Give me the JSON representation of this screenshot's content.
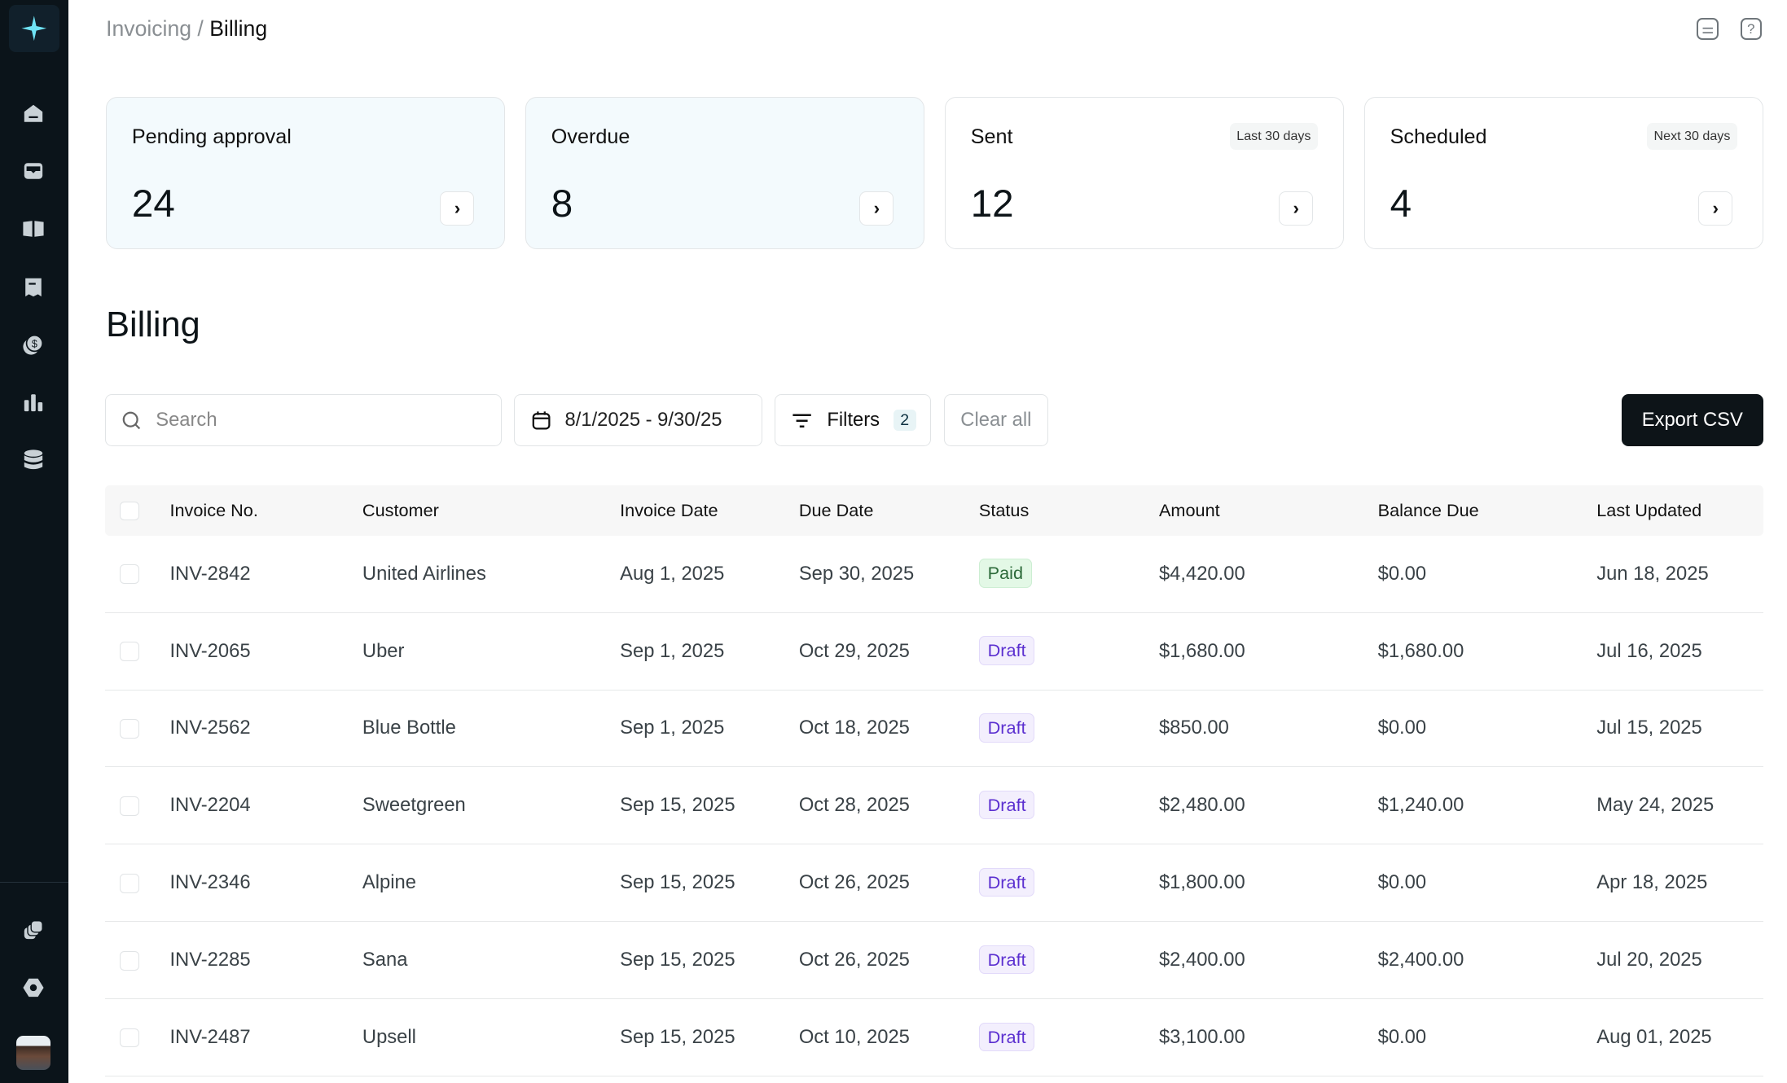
{
  "sidebar": {
    "items": [
      {
        "icon": "home-icon"
      },
      {
        "icon": "inbox-icon"
      },
      {
        "icon": "book-icon"
      },
      {
        "icon": "receipt-icon"
      },
      {
        "icon": "coins-icon"
      },
      {
        "icon": "chart-icon"
      },
      {
        "icon": "database-icon"
      },
      {
        "icon": "layers-icon"
      },
      {
        "icon": "settings-icon"
      }
    ],
    "logo_color": "#6fe3f5"
  },
  "breadcrumb": {
    "parent": "Invoicing",
    "separator": "/",
    "current": "Billing"
  },
  "cards": [
    {
      "label": "Pending approval",
      "value": "24",
      "pill": ""
    },
    {
      "label": "Overdue",
      "value": "8",
      "pill": ""
    },
    {
      "label": "Sent",
      "value": "12",
      "pill": "Last 30 days"
    },
    {
      "label": "Scheduled",
      "value": "4",
      "pill": "Next 30 days"
    }
  ],
  "title": "Billing",
  "toolbar": {
    "search_placeholder": "Search",
    "date_range": "8/1/2025 - 9/30/25",
    "filters_label": "Filters",
    "filters_count": "2",
    "clear_label": "Clear all",
    "export_label": "Export CSV"
  },
  "table": {
    "headers": [
      "Invoice No.",
      "Customer",
      "Invoice Date",
      "Due Date",
      "Status",
      "Amount",
      "Balance Due",
      "Last Updated"
    ],
    "rows": [
      [
        "INV-2842",
        "United Airlines",
        "Aug 1, 2025",
        "Sep 30, 2025",
        "Paid",
        "$4,420.00",
        "$0.00",
        "Jun 18, 2025"
      ],
      [
        "INV-2065",
        "Uber",
        "Sep 1, 2025",
        "Oct 29, 2025",
        "Draft",
        "$1,680.00",
        "$1,680.00",
        "Jul 16, 2025"
      ],
      [
        "INV-2562",
        "Blue Bottle",
        "Sep 1, 2025",
        "Oct 18, 2025",
        "Draft",
        "$850.00",
        "$0.00",
        "Jul 15, 2025"
      ],
      [
        "INV-2204",
        "Sweetgreen",
        "Sep 15, 2025",
        "Oct 28, 2025",
        "Draft",
        "$2,480.00",
        "$1,240.00",
        "May 24, 2025"
      ],
      [
        "INV-2346",
        "Alpine",
        "Sep 15, 2025",
        "Oct 26, 2025",
        "Draft",
        "$1,800.00",
        "$0.00",
        "Apr 18, 2025"
      ],
      [
        "INV-2285",
        "Sana",
        "Sep 15, 2025",
        "Oct 26, 2025",
        "Draft",
        "$2,400.00",
        "$2,400.00",
        "Jul 20, 2025"
      ],
      [
        "INV-2487",
        "Upsell",
        "Sep 15, 2025",
        "Oct 10, 2025",
        "Draft",
        "$3,100.00",
        "$0.00",
        "Aug 01, 2025"
      ]
    ]
  },
  "colors": {
    "sidebar": "#0b141a",
    "paid": "#2d6a3a",
    "draft": "#5b2fd0",
    "export_bg": "#0d1418"
  }
}
